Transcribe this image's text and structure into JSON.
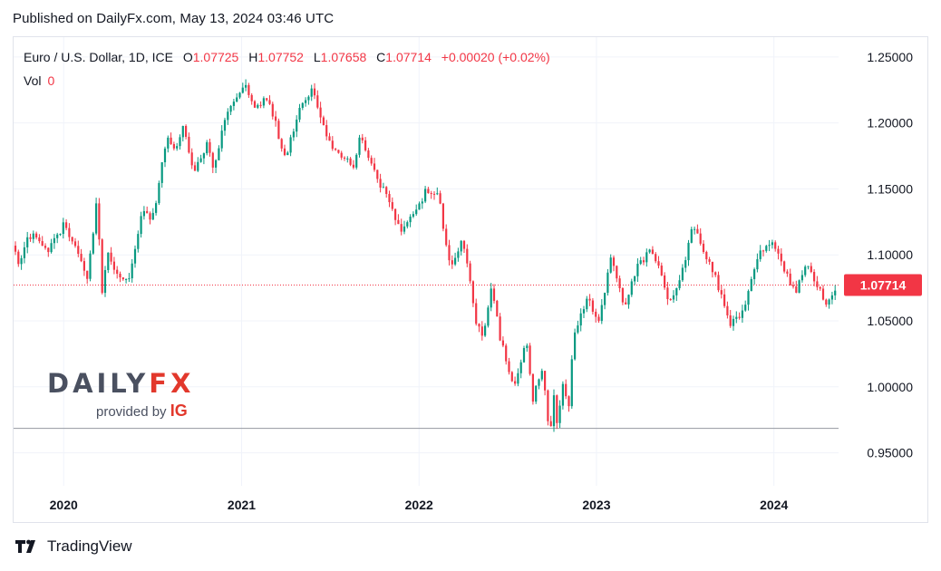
{
  "header": {
    "published": "Published on DailyFx.com, May 13, 2024 03:46 UTC"
  },
  "legend": {
    "symbol": "Euro / U.S. Dollar, 1D, ICE",
    "o_label": "O",
    "o_value": "1.07725",
    "h_label": "H",
    "h_value": "1.07752",
    "l_label": "L",
    "l_value": "1.07658",
    "c_label": "C",
    "c_value": "1.07714",
    "change": "+0.00020 (+0.02%)",
    "vol_label": "Vol",
    "vol_value": "0"
  },
  "watermark": {
    "brand_a": "DAILY",
    "brand_b": "FX",
    "provided_by": "provided by",
    "ig": "IG"
  },
  "footer": {
    "tradingview": "TradingView"
  },
  "colors": {
    "up": "#089981",
    "down": "#f23645",
    "grid": "#f0f3fa",
    "price_label": "#f23645",
    "support_line": "#9598a1"
  },
  "chart_data": {
    "type": "candlestick",
    "title": "",
    "xlabel": "",
    "ylabel": "",
    "x_ticks": [
      "2020",
      "2021",
      "2022",
      "2023",
      "2024"
    ],
    "y_ticks": [
      "1.25000",
      "1.20000",
      "1.15000",
      "1.10000",
      "1.05000",
      "1.00000",
      "0.95000"
    ],
    "ylim": [
      0.925,
      1.265
    ],
    "x_range": [
      "2019-09-20",
      "2024-05-13"
    ],
    "grid": true,
    "last_price": {
      "value": 1.07714,
      "label": "1.07714"
    },
    "horizontal_line": 0.9685,
    "series": [
      {
        "name": "Euro / U.S. Dollar",
        "points": [
          [
            "2019-09-20",
            1.107
          ],
          [
            "2019-10-01",
            1.091
          ],
          [
            "2019-10-20",
            1.113
          ],
          [
            "2019-11-01",
            1.116
          ],
          [
            "2019-11-28",
            1.101
          ],
          [
            "2019-12-31",
            1.122
          ],
          [
            "2020-01-15",
            1.114
          ],
          [
            "2020-02-19",
            1.08
          ],
          [
            "2020-03-09",
            1.142
          ],
          [
            "2020-03-20",
            1.07
          ],
          [
            "2020-03-31",
            1.103
          ],
          [
            "2020-04-24",
            1.08
          ],
          [
            "2020-05-14",
            1.08
          ],
          [
            "2020-05-31",
            1.11
          ],
          [
            "2020-06-10",
            1.135
          ],
          [
            "2020-06-30",
            1.124
          ],
          [
            "2020-07-31",
            1.187
          ],
          [
            "2020-08-20",
            1.18
          ],
          [
            "2020-09-01",
            1.2
          ],
          [
            "2020-09-25",
            1.164
          ],
          [
            "2020-10-21",
            1.184
          ],
          [
            "2020-11-04",
            1.165
          ],
          [
            "2020-12-01",
            1.207
          ],
          [
            "2020-12-31",
            1.222
          ],
          [
            "2021-01-06",
            1.234
          ],
          [
            "2021-01-28",
            1.211
          ],
          [
            "2021-02-25",
            1.22
          ],
          [
            "2021-03-31",
            1.173
          ],
          [
            "2021-04-30",
            1.21
          ],
          [
            "2021-05-25",
            1.226
          ],
          [
            "2021-06-30",
            1.186
          ],
          [
            "2021-07-21",
            1.177
          ],
          [
            "2021-08-20",
            1.168
          ],
          [
            "2021-09-03",
            1.19
          ],
          [
            "2021-10-12",
            1.155
          ],
          [
            "2021-11-24",
            1.119
          ],
          [
            "2021-12-31",
            1.137
          ],
          [
            "2022-01-14",
            1.148
          ],
          [
            "2022-02-10",
            1.145
          ],
          [
            "2022-03-07",
            1.087
          ],
          [
            "2022-03-31",
            1.115
          ],
          [
            "2022-04-28",
            1.05
          ],
          [
            "2022-05-13",
            1.035
          ],
          [
            "2022-05-30",
            1.077
          ],
          [
            "2022-06-15",
            1.04
          ],
          [
            "2022-07-14",
            0.998
          ],
          [
            "2022-08-10",
            1.034
          ],
          [
            "2022-08-23",
            0.99
          ],
          [
            "2022-09-12",
            1.015
          ],
          [
            "2022-09-27",
            0.957
          ],
          [
            "2022-10-04",
            0.999
          ],
          [
            "2022-10-13",
            0.97
          ],
          [
            "2022-10-27",
            1.009
          ],
          [
            "2022-11-03",
            0.975
          ],
          [
            "2022-11-15",
            1.04
          ],
          [
            "2022-12-14",
            1.067
          ],
          [
            "2023-01-06",
            1.05
          ],
          [
            "2023-02-01",
            1.1
          ],
          [
            "2023-02-28",
            1.057
          ],
          [
            "2023-03-23",
            1.09
          ],
          [
            "2023-04-26",
            1.104
          ],
          [
            "2023-05-31",
            1.065
          ],
          [
            "2023-06-30",
            1.09
          ],
          [
            "2023-07-18",
            1.124
          ],
          [
            "2023-08-31",
            1.085
          ],
          [
            "2023-09-29",
            1.055
          ],
          [
            "2023-10-03",
            1.046
          ],
          [
            "2023-10-31",
            1.058
          ],
          [
            "2023-11-29",
            1.1
          ],
          [
            "2023-12-28",
            1.112
          ],
          [
            "2024-01-31",
            1.081
          ],
          [
            "2024-02-14",
            1.07
          ],
          [
            "2024-03-08",
            1.094
          ],
          [
            "2024-04-02",
            1.075
          ],
          [
            "2024-04-16",
            1.062
          ],
          [
            "2024-04-30",
            1.067
          ],
          [
            "2024-05-13",
            1.0771
          ]
        ]
      }
    ]
  }
}
